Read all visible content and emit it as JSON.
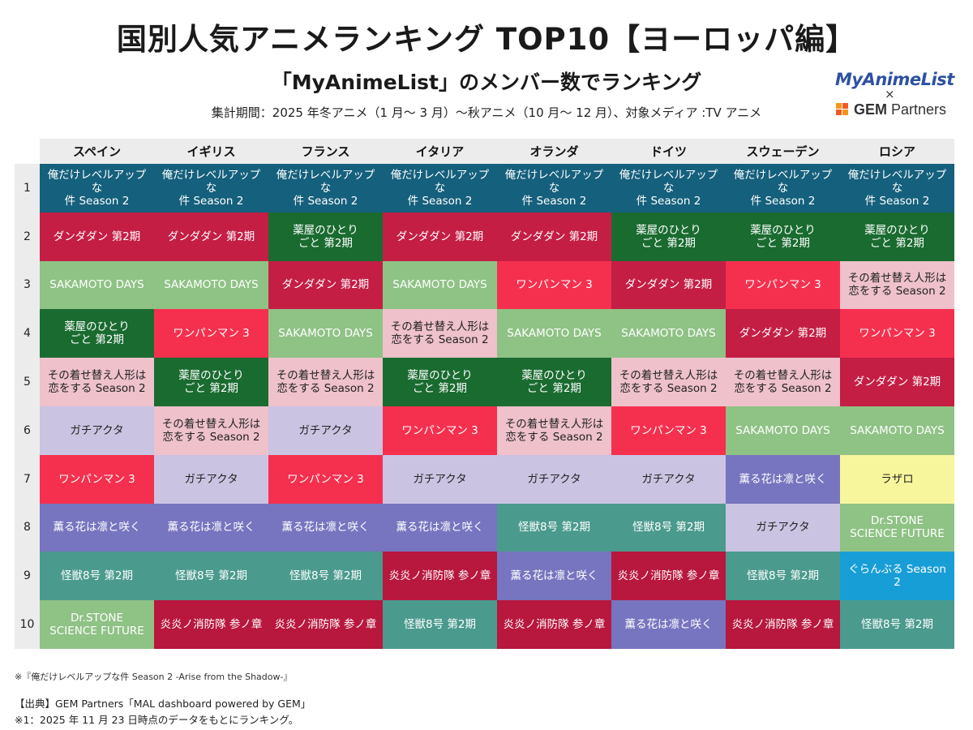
{
  "title": "国別人気アニメランキング TOP10【ヨーロッパ編】",
  "subtitle": "「MyAnimeList」のメンバー数でランキング",
  "period": "集計期間：2025 年冬アニメ（1 月～ 3 月）～秋アニメ（10 月～ 12 月）、対象メディア :TV アニメ",
  "logos": {
    "mal": "MyAnimeList",
    "times": "×",
    "gem_bold": "GEM",
    "gem_rest": " Partners"
  },
  "notes": {
    "footnote": "※『俺だけレベルアップな件 Season 2 -Arise from the Shadow-』",
    "source": "【出典】GEM Partners「MAL dashboard powered by GEM」",
    "basis": "※1：2025 年 11 月 23 日時点のデータをもとにランキング。"
  },
  "chart_data": {
    "type": "table",
    "columns": [
      "スペイン",
      "イギリス",
      "フランス",
      "イタリア",
      "オランダ",
      "ドイツ",
      "スウェーデン",
      "ロシア"
    ],
    "ranks": [
      "1",
      "2",
      "3",
      "4",
      "5",
      "6",
      "7",
      "8",
      "9",
      "10"
    ],
    "titles": {
      "solo": "俺だけレベルアップな\n件 Season 2",
      "dandadan": "ダンダダン 第2期",
      "kusuriya": "薬屋のひとり\nごと 第2期",
      "sakamoto": "SAKAMOTO DAYS",
      "onepunch": "ワンパンマン 3",
      "kisekae": "その着せ替え人形は\n恋をする Season 2",
      "gachiakuta": "ガチアクタ",
      "kaoru": "薫る花は凛と咲く",
      "kaiju": "怪獣8号 第2期",
      "enen": "炎炎ノ消防隊 参ノ章",
      "drstone": "Dr.STONE\nSCIENCE FUTURE",
      "lazarus": "ラザロ",
      "granblue": "ぐらんぶる Season 2"
    },
    "colors": {
      "solo": "#15607d",
      "dandadan": "#c41e45",
      "kusuriya": "#1a6b30",
      "sakamoto": "#8fc285",
      "onepunch": "#f5304f",
      "kisekae": "#eec1cb",
      "gachiakuta": "#cbc3e2",
      "kaoru": "#7775bf",
      "kaiju": "#4b9a8e",
      "enen": "#b8173e",
      "drstone": "#8fc285",
      "lazarus": "#f8f69c",
      "granblue": "#189ed6"
    },
    "text_colors": {
      "solo": "#ffffff",
      "dandadan": "#ffffff",
      "kusuriya": "#ffffff",
      "sakamoto": "#ffffff",
      "onepunch": "#ffffff",
      "kisekae": "#222222",
      "gachiakuta": "#222222",
      "kaoru": "#ffffff",
      "kaiju": "#ffffff",
      "enen": "#ffffff",
      "drstone": "#ffffff",
      "lazarus": "#222222",
      "granblue": "#ffffff"
    },
    "rankings": [
      [
        "solo",
        "dandadan",
        "sakamoto",
        "kusuriya",
        "kisekae",
        "gachiakuta",
        "onepunch",
        "kaoru",
        "kaiju",
        "drstone"
      ],
      [
        "solo",
        "dandadan",
        "sakamoto",
        "onepunch",
        "kusuriya",
        "kisekae",
        "gachiakuta",
        "kaoru",
        "kaiju",
        "enen"
      ],
      [
        "solo",
        "kusuriya",
        "dandadan",
        "sakamoto",
        "kisekae",
        "gachiakuta",
        "onepunch",
        "kaoru",
        "kaiju",
        "enen"
      ],
      [
        "solo",
        "dandadan",
        "sakamoto",
        "kisekae",
        "kusuriya",
        "onepunch",
        "gachiakuta",
        "kaoru",
        "enen",
        "kaiju"
      ],
      [
        "solo",
        "dandadan",
        "onepunch",
        "sakamoto",
        "kusuriya",
        "kisekae",
        "gachiakuta",
        "kaiju",
        "kaoru",
        "enen"
      ],
      [
        "solo",
        "kusuriya",
        "dandadan",
        "sakamoto",
        "kisekae",
        "onepunch",
        "gachiakuta",
        "kaiju",
        "enen",
        "kaoru"
      ],
      [
        "solo",
        "kusuriya",
        "onepunch",
        "dandadan",
        "kisekae",
        "sakamoto",
        "kaoru",
        "gachiakuta",
        "kaiju",
        "enen"
      ],
      [
        "solo",
        "kusuriya",
        "kisekae",
        "onepunch",
        "dandadan",
        "sakamoto",
        "lazarus",
        "drstone",
        "granblue",
        "kaiju"
      ]
    ]
  }
}
